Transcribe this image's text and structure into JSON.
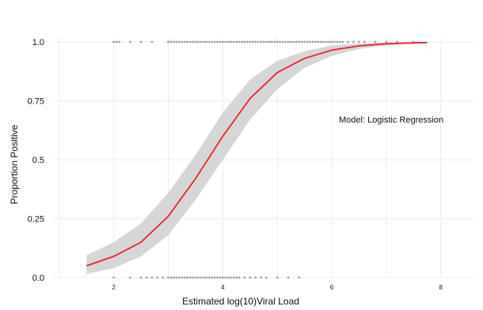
{
  "chart_data": {
    "type": "line",
    "xlabel": "Estimated log(10)Viral Load",
    "ylabel": "Proportion Positive",
    "annotation": "Model: Logistic Regression",
    "xlim": [
      0.9,
      8.6
    ],
    "ylim": [
      0,
      1.02
    ],
    "x_ticks": [
      2,
      4,
      6,
      8
    ],
    "x_tick_labels": [
      "2",
      "4",
      "6",
      "8"
    ],
    "y_ticks": [
      0,
      0.25,
      0.5,
      0.75,
      1.0
    ],
    "y_tick_labels": [
      "0.0",
      "0.25",
      "0.5",
      "0.75",
      "1.0"
    ],
    "grid": true,
    "colors": {
      "fit_line": "#e8232d",
      "confidence_band": "#d6d6d6",
      "points": "#555555",
      "grid": "#ececec"
    },
    "series": [
      {
        "type": "line",
        "x": [
          1.5,
          2.0,
          2.5,
          3.0,
          3.5,
          4.0,
          4.5,
          5.0,
          5.5,
          6.0,
          6.5,
          7.0,
          7.5,
          7.75
        ],
        "y": [
          0.05,
          0.09,
          0.15,
          0.26,
          0.42,
          0.6,
          0.76,
          0.87,
          0.93,
          0.965,
          0.983,
          0.992,
          0.996,
          0.997
        ],
        "lower": [
          0.015,
          0.04,
          0.09,
          0.18,
          0.33,
          0.5,
          0.67,
          0.8,
          0.89,
          0.94,
          0.97,
          0.985,
          0.992,
          0.994
        ],
        "upper": [
          0.095,
          0.15,
          0.23,
          0.36,
          0.52,
          0.7,
          0.84,
          0.92,
          0.96,
          0.985,
          0.993,
          0.997,
          0.999,
          0.999
        ]
      },
      {
        "type": "scatter",
        "y": 1.0,
        "x": [
          2.0,
          2.05,
          2.1,
          2.3,
          2.5,
          2.7,
          3.0,
          3.05,
          3.1,
          3.15,
          3.2,
          3.25,
          3.3,
          3.35,
          3.4,
          3.45,
          3.5,
          3.55,
          3.6,
          3.65,
          3.7,
          3.75,
          3.8,
          3.85,
          3.9,
          3.95,
          4.0,
          4.05,
          4.1,
          4.15,
          4.2,
          4.25,
          4.3,
          4.35,
          4.4,
          4.45,
          4.5,
          4.55,
          4.6,
          4.65,
          4.7,
          4.75,
          4.8,
          4.85,
          4.9,
          4.95,
          5.0,
          5.05,
          5.1,
          5.15,
          5.2,
          5.25,
          5.3,
          5.35,
          5.4,
          5.45,
          5.5,
          5.55,
          5.6,
          5.65,
          5.7,
          5.75,
          5.8,
          5.85,
          5.9,
          5.95,
          6.0,
          6.05,
          6.1,
          6.15,
          6.2,
          6.3,
          6.4,
          6.5,
          6.6,
          6.8,
          7.0,
          7.2,
          7.5
        ]
      },
      {
        "type": "scatter",
        "y": 0.0,
        "x": [
          2.0,
          2.3,
          2.5,
          2.6,
          2.7,
          2.8,
          2.9,
          3.0,
          3.05,
          3.1,
          3.15,
          3.2,
          3.25,
          3.3,
          3.35,
          3.4,
          3.45,
          3.5,
          3.55,
          3.6,
          3.65,
          3.7,
          3.75,
          3.8,
          3.85,
          3.9,
          3.95,
          4.0,
          4.05,
          4.1,
          4.15,
          4.2,
          4.25,
          4.3,
          4.4,
          4.5,
          4.6,
          4.7,
          4.8,
          5.0,
          5.2,
          5.4
        ]
      }
    ]
  }
}
